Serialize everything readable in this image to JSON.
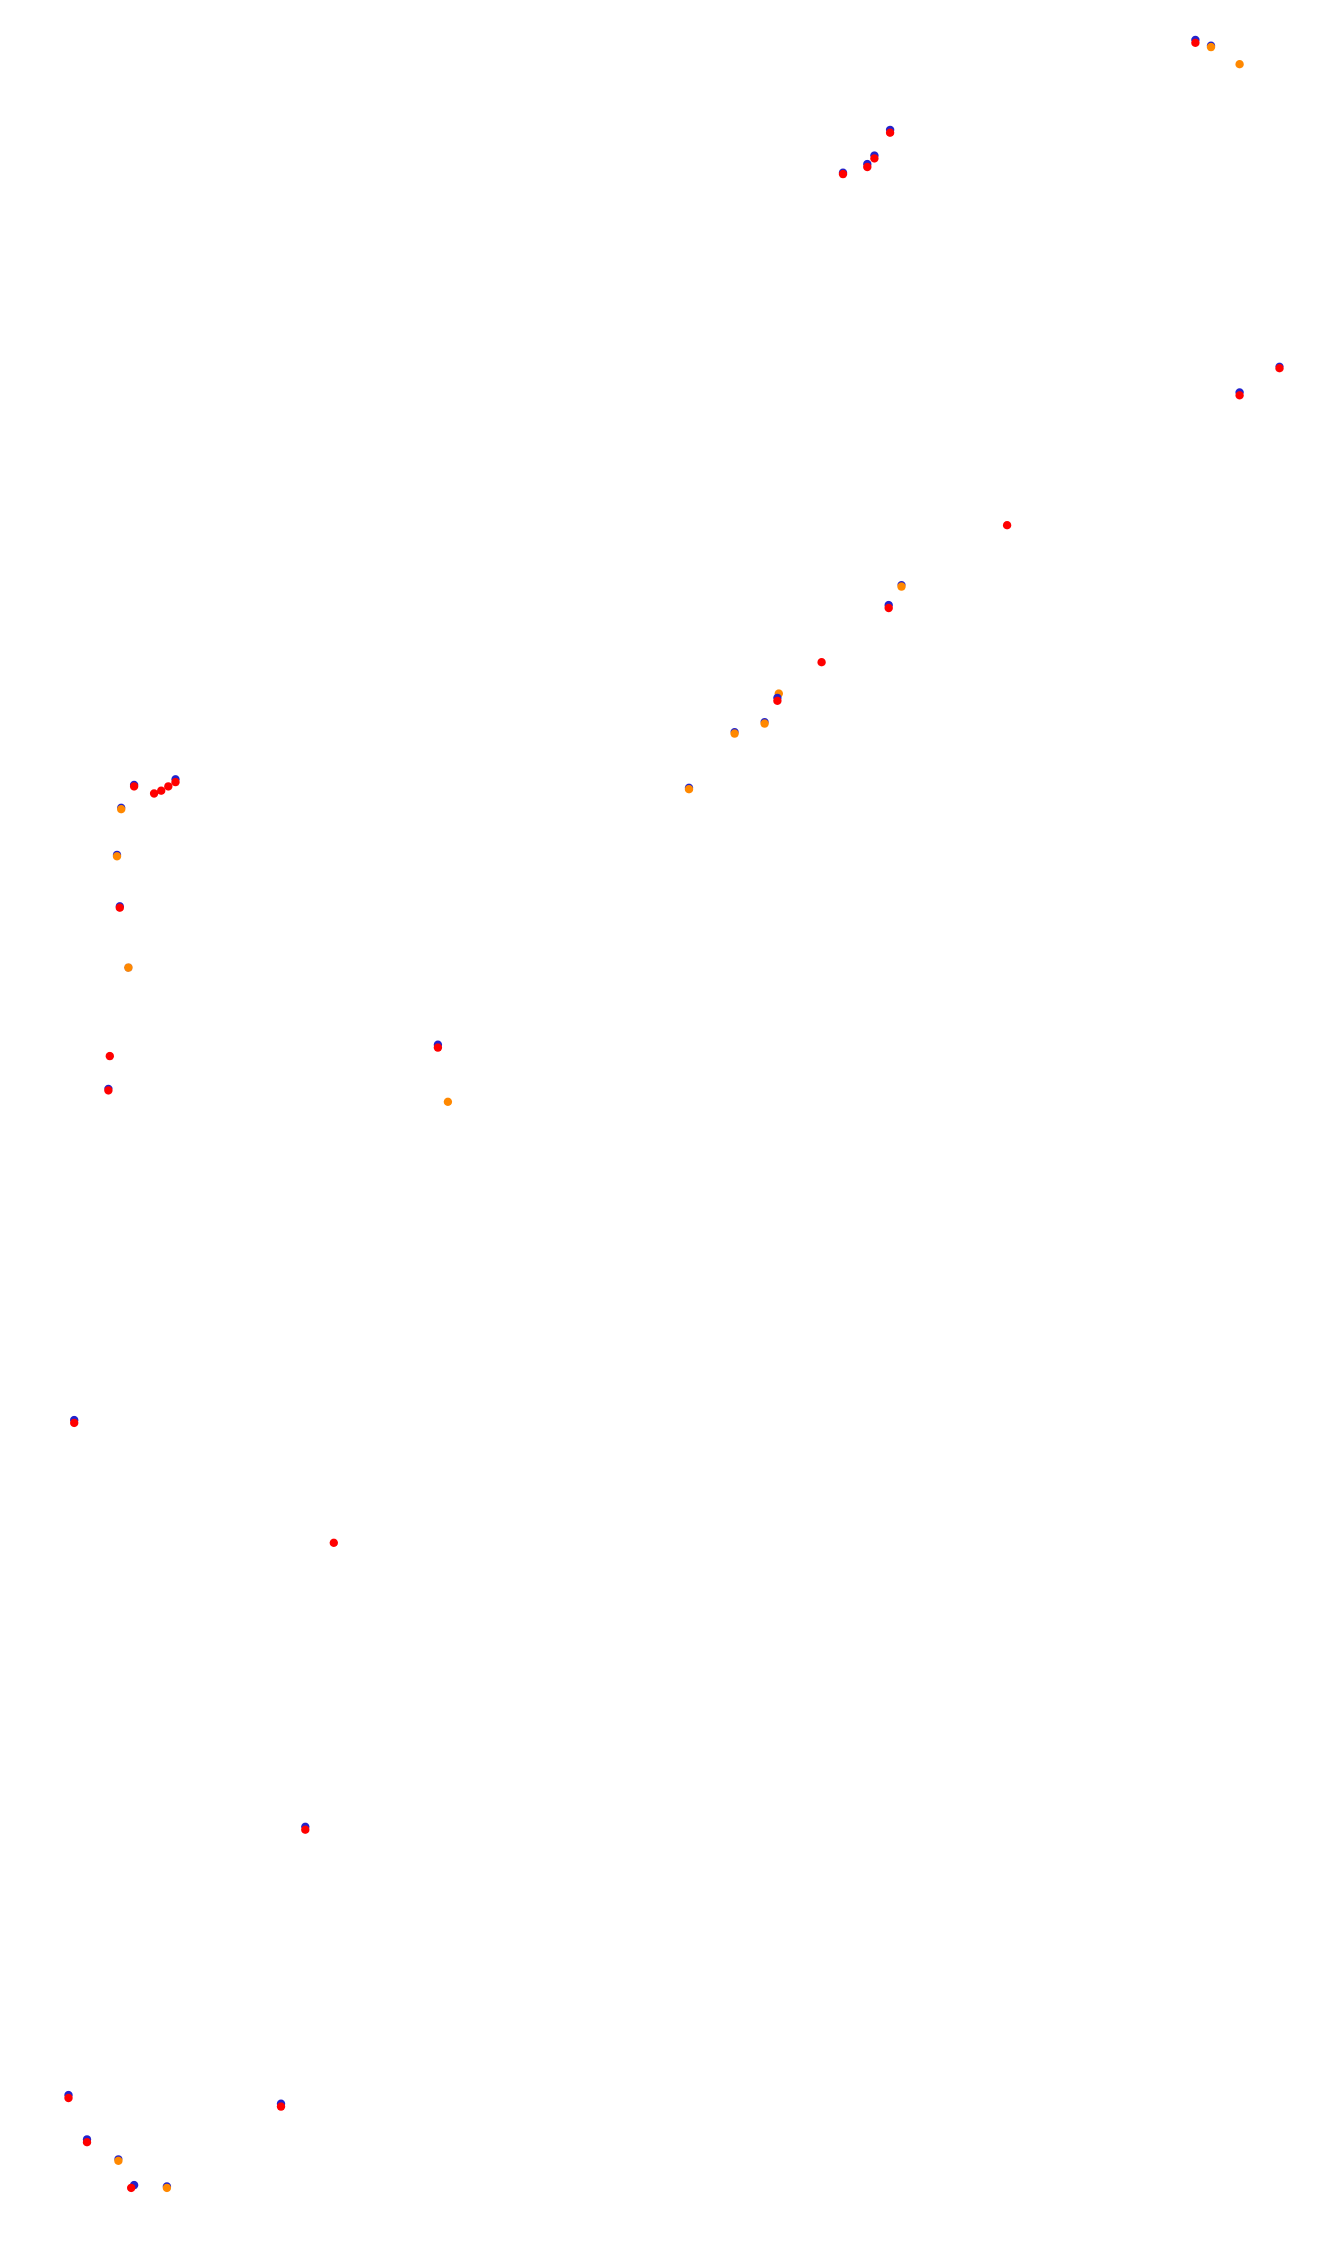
{
  "chart_data": {
    "type": "scatter",
    "title": "",
    "xlabel": "",
    "ylabel": "",
    "xlim": [
      0,
      938
    ],
    "ylim": [
      0,
      1573
    ],
    "y_inverted": true,
    "grid": false,
    "legend": "none",
    "colors": {
      "blue": "#2222cc",
      "red": "#ff0000",
      "orange": "#ff8800"
    },
    "points": [
      {
        "x": 838,
        "y": 28,
        "c": "blue"
      },
      {
        "x": 838,
        "y": 30,
        "c": "red"
      },
      {
        "x": 849,
        "y": 32,
        "c": "blue"
      },
      {
        "x": 849,
        "y": 33,
        "c": "orange"
      },
      {
        "x": 869,
        "y": 45,
        "c": "orange"
      },
      {
        "x": 624,
        "y": 91,
        "c": "blue"
      },
      {
        "x": 624,
        "y": 93,
        "c": "red"
      },
      {
        "x": 613,
        "y": 109,
        "c": "blue"
      },
      {
        "x": 613,
        "y": 111,
        "c": "red"
      },
      {
        "x": 608,
        "y": 115,
        "c": "blue"
      },
      {
        "x": 608,
        "y": 117,
        "c": "red"
      },
      {
        "x": 591,
        "y": 121,
        "c": "blue"
      },
      {
        "x": 591,
        "y": 122,
        "c": "red"
      },
      {
        "x": 897,
        "y": 257,
        "c": "blue"
      },
      {
        "x": 897,
        "y": 258,
        "c": "red"
      },
      {
        "x": 869,
        "y": 275,
        "c": "blue"
      },
      {
        "x": 869,
        "y": 277,
        "c": "red"
      },
      {
        "x": 706,
        "y": 368,
        "c": "red"
      },
      {
        "x": 632,
        "y": 410,
        "c": "blue"
      },
      {
        "x": 632,
        "y": 411,
        "c": "orange"
      },
      {
        "x": 623,
        "y": 424,
        "c": "blue"
      },
      {
        "x": 623,
        "y": 426,
        "c": "red"
      },
      {
        "x": 576,
        "y": 464,
        "c": "red"
      },
      {
        "x": 546,
        "y": 486,
        "c": "orange"
      },
      {
        "x": 545,
        "y": 489,
        "c": "blue"
      },
      {
        "x": 545,
        "y": 491,
        "c": "red"
      },
      {
        "x": 536,
        "y": 506,
        "c": "blue"
      },
      {
        "x": 536,
        "y": 507,
        "c": "orange"
      },
      {
        "x": 515,
        "y": 513,
        "c": "blue"
      },
      {
        "x": 515,
        "y": 514,
        "c": "orange"
      },
      {
        "x": 483,
        "y": 552,
        "c": "blue"
      },
      {
        "x": 483,
        "y": 553,
        "c": "orange"
      },
      {
        "x": 123,
        "y": 546,
        "c": "blue"
      },
      {
        "x": 123,
        "y": 548,
        "c": "red"
      },
      {
        "x": 118,
        "y": 551,
        "c": "red"
      },
      {
        "x": 113,
        "y": 554,
        "c": "red"
      },
      {
        "x": 108,
        "y": 556,
        "c": "red"
      },
      {
        "x": 94,
        "y": 550,
        "c": "blue"
      },
      {
        "x": 94,
        "y": 551,
        "c": "red"
      },
      {
        "x": 85,
        "y": 566,
        "c": "blue"
      },
      {
        "x": 85,
        "y": 567,
        "c": "orange"
      },
      {
        "x": 82,
        "y": 599,
        "c": "blue"
      },
      {
        "x": 82,
        "y": 600,
        "c": "orange"
      },
      {
        "x": 84,
        "y": 635,
        "c": "blue"
      },
      {
        "x": 84,
        "y": 636,
        "c": "red"
      },
      {
        "x": 90,
        "y": 678,
        "c": "blue"
      },
      {
        "x": 90,
        "y": 678,
        "c": "orange"
      },
      {
        "x": 307,
        "y": 732,
        "c": "blue"
      },
      {
        "x": 307,
        "y": 734,
        "c": "red"
      },
      {
        "x": 77,
        "y": 740,
        "c": "red"
      },
      {
        "x": 76,
        "y": 763,
        "c": "blue"
      },
      {
        "x": 76,
        "y": 764,
        "c": "red"
      },
      {
        "x": 314,
        "y": 772,
        "c": "orange"
      },
      {
        "x": 52,
        "y": 995,
        "c": "blue"
      },
      {
        "x": 52,
        "y": 997,
        "c": "red"
      },
      {
        "x": 234,
        "y": 1081,
        "c": "red"
      },
      {
        "x": 214,
        "y": 1280,
        "c": "blue"
      },
      {
        "x": 214,
        "y": 1282,
        "c": "red"
      },
      {
        "x": 48,
        "y": 1468,
        "c": "blue"
      },
      {
        "x": 48,
        "y": 1470,
        "c": "red"
      },
      {
        "x": 197,
        "y": 1474,
        "c": "blue"
      },
      {
        "x": 197,
        "y": 1476,
        "c": "red"
      },
      {
        "x": 61,
        "y": 1499,
        "c": "blue"
      },
      {
        "x": 61,
        "y": 1501,
        "c": "red"
      },
      {
        "x": 83,
        "y": 1513,
        "c": "blue"
      },
      {
        "x": 83,
        "y": 1514,
        "c": "orange"
      },
      {
        "x": 94,
        "y": 1531,
        "c": "blue"
      },
      {
        "x": 92,
        "y": 1533,
        "c": "red"
      },
      {
        "x": 117,
        "y": 1532,
        "c": "blue"
      },
      {
        "x": 117,
        "y": 1533,
        "c": "orange"
      }
    ]
  }
}
